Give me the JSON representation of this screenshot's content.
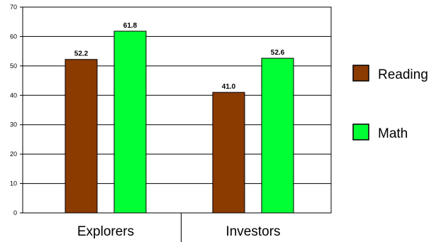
{
  "chart_data": {
    "type": "bar",
    "categories": [
      "Explorers",
      "Investors"
    ],
    "series": [
      {
        "name": "Reading",
        "values": [
          52.2,
          41.0
        ],
        "labels": [
          "52.2",
          "41.0"
        ],
        "color": "#8B3A00"
      },
      {
        "name": "Math",
        "values": [
          61.8,
          52.6
        ],
        "labels": [
          "61.8",
          "52.6"
        ],
        "color": "#00FF33"
      }
    ],
    "ylim": [
      0,
      70
    ],
    "yticks": [
      0,
      10,
      20,
      30,
      40,
      50,
      60,
      70
    ],
    "ytick_labels": [
      "0",
      "10",
      "20",
      "30",
      "40",
      "50",
      "60",
      "70"
    ],
    "grid": true,
    "legend_position": "right"
  }
}
